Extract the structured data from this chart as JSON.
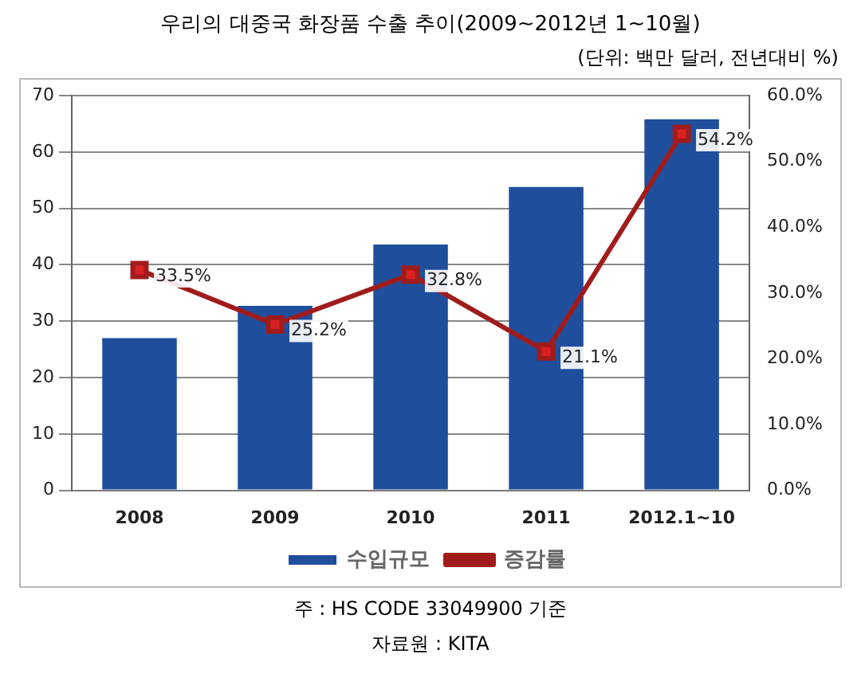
{
  "chart_data": {
    "type": "bar",
    "title": "우리의 대중국 화장품 수출 추이(2009~2012년 1~10월)",
    "subtitle": "(단위: 백만 달러, 전년대비 %)",
    "categories": [
      "2008",
      "2009",
      "2010",
      "2011",
      "2012.1~10"
    ],
    "series": [
      {
        "name": "수입규모",
        "color": "#1f4e9c",
        "values": [
          27,
          32.7,
          43.6,
          53.8,
          65.8
        ]
      },
      {
        "name": "증감률",
        "type": "line",
        "axis": "y2",
        "color": "#a01c1c",
        "values": [
          33.5,
          25.2,
          32.8,
          21.1,
          54.2
        ],
        "value_labels": [
          "33.5%",
          "25.2%",
          "32.8%",
          "21.1%",
          "54.2%"
        ]
      }
    ],
    "ylim": [
      0,
      70
    ],
    "yticks": [
      0,
      10,
      20,
      30,
      40,
      50,
      60,
      70
    ],
    "y2lim": [
      0,
      60
    ],
    "y2ticks": [
      {
        "value": 0,
        "label": "0.0%"
      },
      {
        "value": 10,
        "label": "10.0%"
      },
      {
        "value": 20,
        "label": "20.0%"
      },
      {
        "value": 30,
        "label": "30.0%"
      },
      {
        "value": 40,
        "label": "40.0%"
      },
      {
        "value": 50,
        "label": "50.0%"
      },
      {
        "value": 60,
        "label": "60.0%"
      }
    ],
    "grid": "y",
    "legend": "bottom",
    "marker": "square",
    "line_style": "solid",
    "annotations": [
      "주 : HS CODE 33049900 기준",
      "자료원 : KITA"
    ]
  }
}
